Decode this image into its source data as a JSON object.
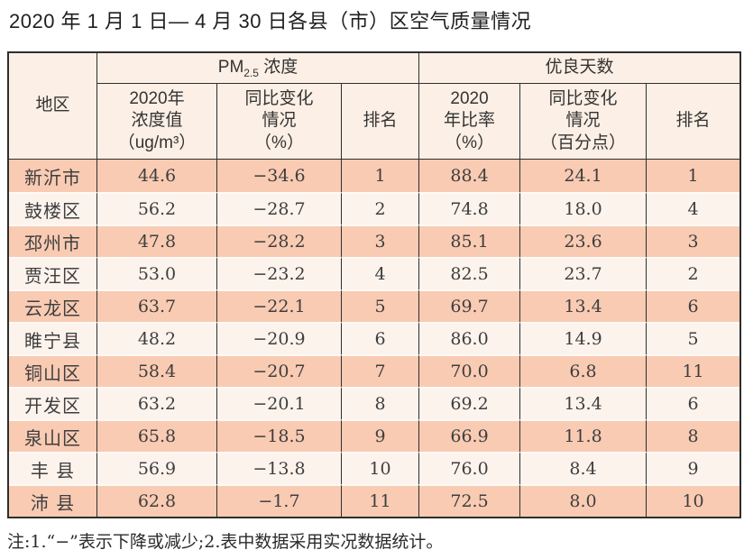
{
  "title": "2020 年 1 月 1 日— 4 月 30 日各县（市）区空气质量情况",
  "note": "注:1.“−”表示下降或减少;2.表中数据采用实况数据统计。",
  "colors": {
    "odd_row_bg": "#f9cbb3",
    "even_row_bg": "#fdf3ed",
    "header_bg": "#fcefe5",
    "border": "#2e2e2e",
    "text": "#3c3c3c"
  },
  "table": {
    "header": {
      "region": "地区",
      "pm_group": {
        "prefix": "PM",
        "sub": "2.5",
        "suffix": " 浓度"
      },
      "good_group": "优良天数",
      "pm_value": "2020年\n浓度值\n（ug/m³）",
      "pm_change": "同比变化\n情况\n（%）",
      "pm_rank": "排名",
      "good_rate": "2020\n年比率\n（%）",
      "good_change": "同比变化\n情况\n（百分点）",
      "good_rank": "排名"
    },
    "rows": [
      {
        "region": "新沂市",
        "pm_value": "44.6",
        "pm_change": "−34.6",
        "pm_rank": "1",
        "good_rate": "88.4",
        "good_change": "24.1",
        "good_rank": "1"
      },
      {
        "region": "鼓楼区",
        "pm_value": "56.2",
        "pm_change": "−28.7",
        "pm_rank": "2",
        "good_rate": "74.8",
        "good_change": "18.0",
        "good_rank": "4"
      },
      {
        "region": "邳州市",
        "pm_value": "47.8",
        "pm_change": "−28.2",
        "pm_rank": "3",
        "good_rate": "85.1",
        "good_change": "23.6",
        "good_rank": "3"
      },
      {
        "region": "贾汪区",
        "pm_value": "53.0",
        "pm_change": "−23.2",
        "pm_rank": "4",
        "good_rate": "82.5",
        "good_change": "23.7",
        "good_rank": "2"
      },
      {
        "region": "云龙区",
        "pm_value": "63.7",
        "pm_change": "−22.1",
        "pm_rank": "5",
        "good_rate": "69.7",
        "good_change": "13.4",
        "good_rank": "6"
      },
      {
        "region": "睢宁县",
        "pm_value": "48.2",
        "pm_change": "−20.9",
        "pm_rank": "6",
        "good_rate": "86.0",
        "good_change": "14.9",
        "good_rank": "5"
      },
      {
        "region": "铜山区",
        "pm_value": "58.4",
        "pm_change": "−20.7",
        "pm_rank": "7",
        "good_rate": "70.0",
        "good_change": "6.8",
        "good_rank": "11"
      },
      {
        "region": "开发区",
        "pm_value": "63.2",
        "pm_change": "−20.1",
        "pm_rank": "8",
        "good_rate": "69.2",
        "good_change": "13.4",
        "good_rank": "6"
      },
      {
        "region": "泉山区",
        "pm_value": "65.8",
        "pm_change": "−18.5",
        "pm_rank": "9",
        "good_rate": "66.9",
        "good_change": "11.8",
        "good_rank": "8"
      },
      {
        "region": "丰 县",
        "pm_value": "56.9",
        "pm_change": "−13.8",
        "pm_rank": "10",
        "good_rate": "76.0",
        "good_change": "8.4",
        "good_rank": "9"
      },
      {
        "region": "沛 县",
        "pm_value": "62.8",
        "pm_change": "−1.7",
        "pm_rank": "11",
        "good_rate": "72.5",
        "good_change": "8.0",
        "good_rank": "10"
      }
    ]
  }
}
